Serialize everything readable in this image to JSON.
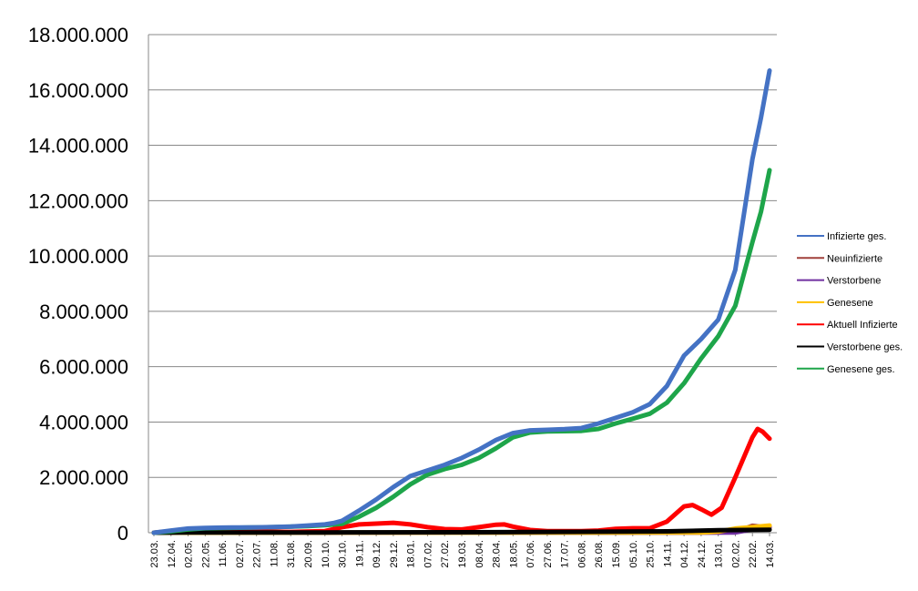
{
  "chart_data": {
    "type": "line",
    "y_ticks": [
      "0",
      "2.000.000",
      "4.000.000",
      "6.000.000",
      "8.000.000",
      "10.000.000",
      "12.000.000",
      "14.000.000",
      "16.000.000",
      "18.000.000"
    ],
    "ylim": [
      0,
      18000000
    ],
    "grid": true,
    "legend_position": "right",
    "x_tick_labels": [
      "23.03.",
      "12.04.",
      "02.05.",
      "22.05.",
      "11.06.",
      "02.07.",
      "22.07.",
      "11.08.",
      "31.08.",
      "20.09.",
      "10.10.",
      "30.10.",
      "19.11.",
      "09.12.",
      "29.12.",
      "18.01.",
      "07.02.",
      "27.02.",
      "19.03.",
      "08.04.",
      "28.04.",
      "18.05.",
      "07.06.",
      "27.06.",
      "17.07.",
      "06.08.",
      "26.08.",
      "15.09.",
      "05.10.",
      "25.10.",
      "14.11.",
      "04.12.",
      "24.12.",
      "13.01.",
      "02.02.",
      "22.02.",
      "14.03."
    ],
    "series": [
      {
        "name": "Infizierte ges.",
        "color": "#4472c4",
        "points": [
          [
            0,
            0
          ],
          [
            1,
            80000
          ],
          [
            2,
            150000
          ],
          [
            3,
            175000
          ],
          [
            4,
            185000
          ],
          [
            5,
            190000
          ],
          [
            6,
            195000
          ],
          [
            7,
            205000
          ],
          [
            8,
            225000
          ],
          [
            9,
            260000
          ],
          [
            10,
            300000
          ],
          [
            10.5,
            350000
          ],
          [
            11,
            430000
          ],
          [
            12,
            800000
          ],
          [
            13,
            1200000
          ],
          [
            14,
            1650000
          ],
          [
            15,
            2050000
          ],
          [
            16,
            2250000
          ],
          [
            17,
            2450000
          ],
          [
            18,
            2700000
          ],
          [
            19,
            3000000
          ],
          [
            20,
            3350000
          ],
          [
            21,
            3600000
          ],
          [
            22,
            3700000
          ],
          [
            23,
            3720000
          ],
          [
            24,
            3740000
          ],
          [
            25,
            3780000
          ],
          [
            26,
            3950000
          ],
          [
            27,
            4150000
          ],
          [
            28,
            4350000
          ],
          [
            29,
            4650000
          ],
          [
            30,
            5300000
          ],
          [
            31,
            6400000
          ],
          [
            32,
            7000000
          ],
          [
            33,
            7700000
          ],
          [
            34,
            9500000
          ],
          [
            35,
            13500000
          ],
          [
            35.5,
            15000000
          ],
          [
            36,
            16700000
          ]
        ]
      },
      {
        "name": "Neuinfizierte",
        "color": "#a0403c",
        "points": [
          [
            0,
            0
          ],
          [
            10,
            2000
          ],
          [
            20,
            5000
          ],
          [
            30,
            10000
          ],
          [
            33,
            15000
          ],
          [
            34,
            20000
          ],
          [
            35,
            250000
          ],
          [
            36,
            180000
          ]
        ]
      },
      {
        "name": "Verstorbene",
        "color": "#7030a0",
        "points": [
          [
            0,
            0
          ],
          [
            30,
            500
          ],
          [
            34,
            10000
          ],
          [
            35,
            120000
          ],
          [
            36,
            200000
          ]
        ]
      },
      {
        "name": "Genesene",
        "color": "#ffc000",
        "points": [
          [
            0,
            0
          ],
          [
            32,
            5000
          ],
          [
            33,
            40000
          ],
          [
            34,
            150000
          ],
          [
            35,
            200000
          ],
          [
            36,
            260000
          ]
        ]
      },
      {
        "name": "Aktuell Infizierte",
        "color": "#ff0000",
        "points": [
          [
            0,
            0
          ],
          [
            1,
            60000
          ],
          [
            2,
            80000
          ],
          [
            4,
            60000
          ],
          [
            6,
            40000
          ],
          [
            8,
            30000
          ],
          [
            10,
            60000
          ],
          [
            11,
            200000
          ],
          [
            12,
            300000
          ],
          [
            13,
            330000
          ],
          [
            14,
            360000
          ],
          [
            15,
            300000
          ],
          [
            16,
            200000
          ],
          [
            17,
            130000
          ],
          [
            18,
            120000
          ],
          [
            19,
            200000
          ],
          [
            20,
            290000
          ],
          [
            20.5,
            300000
          ],
          [
            21,
            220000
          ],
          [
            22,
            100000
          ],
          [
            23,
            60000
          ],
          [
            24,
            55000
          ],
          [
            25,
            60000
          ],
          [
            26,
            80000
          ],
          [
            27,
            140000
          ],
          [
            28,
            160000
          ],
          [
            29,
            160000
          ],
          [
            30,
            400000
          ],
          [
            31,
            950000
          ],
          [
            31.5,
            1000000
          ],
          [
            32,
            850000
          ],
          [
            32.6,
            650000
          ],
          [
            33.2,
            900000
          ],
          [
            34,
            2000000
          ],
          [
            35,
            3450000
          ],
          [
            35.3,
            3750000
          ],
          [
            35.6,
            3650000
          ],
          [
            36,
            3400000
          ]
        ]
      },
      {
        "name": "Verstorbene ges.",
        "color": "#000000",
        "points": [
          [
            0,
            0
          ],
          [
            2,
            8000
          ],
          [
            10,
            10000
          ],
          [
            20,
            20000
          ],
          [
            30,
            50000
          ],
          [
            33,
            90000
          ],
          [
            36,
            110000
          ]
        ]
      },
      {
        "name": "Genesene ges.",
        "color": "#1ea54a",
        "points": [
          [
            0,
            0
          ],
          [
            1,
            50000
          ],
          [
            2,
            120000
          ],
          [
            3,
            160000
          ],
          [
            5,
            180000
          ],
          [
            7,
            200000
          ],
          [
            9,
            240000
          ],
          [
            10,
            270000
          ],
          [
            11,
            320000
          ],
          [
            12,
            580000
          ],
          [
            13,
            900000
          ],
          [
            14,
            1300000
          ],
          [
            15,
            1750000
          ],
          [
            16,
            2100000
          ],
          [
            17,
            2300000
          ],
          [
            18,
            2450000
          ],
          [
            19,
            2700000
          ],
          [
            20,
            3050000
          ],
          [
            21,
            3450000
          ],
          [
            22,
            3620000
          ],
          [
            23,
            3660000
          ],
          [
            24,
            3670000
          ],
          [
            25,
            3680000
          ],
          [
            26,
            3750000
          ],
          [
            27,
            3950000
          ],
          [
            28,
            4120000
          ],
          [
            29,
            4300000
          ],
          [
            30,
            4700000
          ],
          [
            31,
            5400000
          ],
          [
            32,
            6300000
          ],
          [
            33,
            7100000
          ],
          [
            34,
            8200000
          ],
          [
            35,
            10500000
          ],
          [
            35.5,
            11600000
          ],
          [
            36,
            13100000
          ]
        ]
      }
    ]
  }
}
